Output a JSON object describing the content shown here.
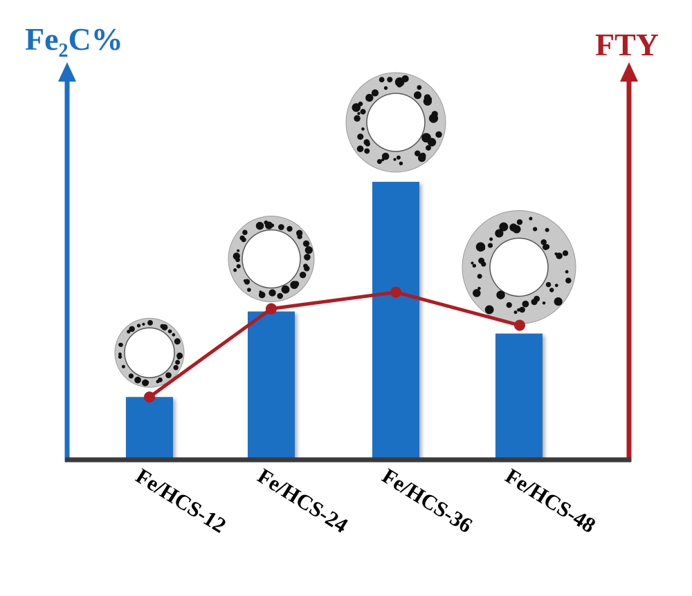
{
  "chart_data": {
    "type": "bar",
    "categories": [
      "Fe/HCS-12",
      "Fe/HCS-24",
      "Fe/HCS-36",
      "Fe/HCS-48"
    ],
    "series": [
      {
        "name": "Fe2C%",
        "type": "bar",
        "values": [
          22,
          53,
          100,
          45
        ],
        "color": "#1a6fc4"
      },
      {
        "name": "FTY",
        "type": "line",
        "values": [
          22,
          54,
          60,
          48
        ],
        "color": "#b01c22"
      }
    ],
    "y_left": {
      "label_main": "Fe",
      "label_sub": "2",
      "label_rest": "C%",
      "color": "#1a6fc4"
    },
    "y_right": {
      "label": "FTY",
      "color": "#b01c22"
    },
    "ylim": [
      0,
      130
    ],
    "grid": false,
    "baseline_color": "#3a3a3a",
    "sphere_shell_color": "#c8c8c8",
    "particle_color": "#111111"
  }
}
